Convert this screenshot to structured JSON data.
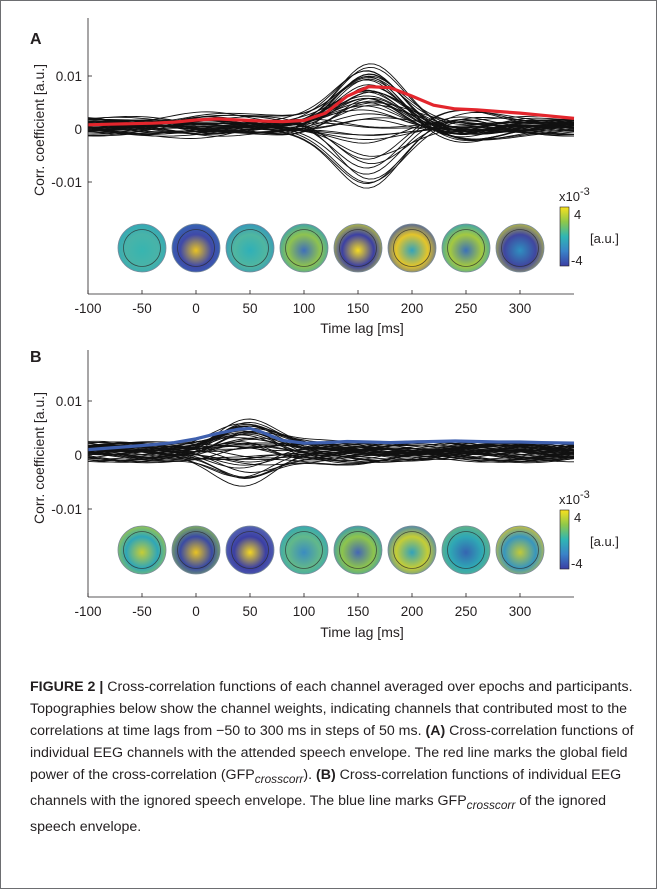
{
  "colors": {
    "red": "#e3262d",
    "blue": "#3f60ae",
    "black": "#111111",
    "axis": "#231f20"
  },
  "chart_data": [
    {
      "panel_label": "A",
      "type": "line",
      "xlabel": "Time lag [ms]",
      "ylabel": "Corr. coefficient [a.u.]",
      "xlim": [
        -100,
        350
      ],
      "ylim": [
        -0.017,
        0.0145
      ],
      "x_ticks": [
        -100,
        -50,
        0,
        50,
        100,
        150,
        200,
        250,
        300
      ],
      "x_tick_labels": [
        "-100",
        "-50",
        "0",
        "50",
        "100",
        "150",
        "200",
        "250",
        "300"
      ],
      "y_ticks": [
        0.01,
        0,
        -0.01
      ],
      "y_tick_labels": [
        "0.01",
        "0",
        "-0.01"
      ],
      "highlight_series": {
        "label": "GFP crosscorr (attended)",
        "color": "#e3262d",
        "x": [
          -100,
          -80,
          -60,
          -40,
          -20,
          0,
          20,
          40,
          60,
          80,
          100,
          120,
          140,
          160,
          180,
          200,
          220,
          240,
          260,
          280,
          300,
          320,
          350
        ],
        "y": [
          0.0008,
          0.0009,
          0.001,
          0.0011,
          0.0013,
          0.0017,
          0.0019,
          0.0017,
          0.0015,
          0.0014,
          0.0016,
          0.003,
          0.0062,
          0.008,
          0.0078,
          0.0062,
          0.0045,
          0.0038,
          0.0036,
          0.0033,
          0.003,
          0.0026,
          0.002
        ]
      },
      "topography_lags": [
        -50,
        0,
        50,
        100,
        150,
        200,
        250,
        300
      ],
      "colorbar": {
        "exponent_label": "x10",
        "exponent_power": "-3",
        "max_label": "4",
        "min_label": "-4",
        "unit": "[a.u.]"
      }
    },
    {
      "panel_label": "B",
      "type": "line",
      "xlabel": "Time lag [ms]",
      "ylabel": "Corr. coefficient [a.u.]",
      "xlim": [
        -100,
        350
      ],
      "ylim": [
        -0.017,
        0.0145
      ],
      "x_ticks": [
        -100,
        -50,
        0,
        50,
        100,
        150,
        200,
        250,
        300
      ],
      "x_tick_labels": [
        "-100",
        "-50",
        "0",
        "50",
        "100",
        "150",
        "200",
        "250",
        "300"
      ],
      "y_ticks": [
        0.01,
        0,
        -0.01
      ],
      "y_tick_labels": [
        "0.01",
        "0",
        "-0.01"
      ],
      "highlight_series": {
        "label": "GFP crosscorr (ignored)",
        "color": "#3f60ae",
        "x": [
          -100,
          -80,
          -60,
          -40,
          -20,
          0,
          20,
          40,
          50,
          60,
          80,
          100,
          120,
          140,
          160,
          180,
          200,
          220,
          240,
          260,
          280,
          300,
          320,
          350
        ],
        "y": [
          0.001,
          0.0013,
          0.0016,
          0.0019,
          0.0023,
          0.003,
          0.004,
          0.0048,
          0.0049,
          0.0043,
          0.0027,
          0.0022,
          0.0023,
          0.0025,
          0.0024,
          0.0023,
          0.0024,
          0.0025,
          0.0026,
          0.0025,
          0.0024,
          0.0024,
          0.0023,
          0.0022
        ]
      },
      "topography_lags": [
        -50,
        0,
        50,
        100,
        150,
        200,
        250,
        300
      ],
      "colorbar": {
        "exponent_label": "x10",
        "exponent_power": "-3",
        "max_label": "4",
        "min_label": "-4",
        "unit": "[a.u.]"
      }
    }
  ],
  "caption": {
    "figure_label": "FIGURE 2 |",
    "intro": " Cross-correlation functions of each channel averaged over epochs and participants. Topographies below show the channel weights, indicating channels that contributed most to the correlations at time lags from −50 to 300 ms in steps of 50 ms. ",
    "a_label": "(A)",
    "a_text": " Cross-correlation functions of individual EEG channels with the attended speech envelope. The red line marks the global field power of the cross-correlation (GFP",
    "sub1": "crosscorr",
    "a_end": "). ",
    "b_label": "(B)",
    "b_text": " Cross-correlation functions of individual EEG channels with the ignored speech envelope. The blue line marks GFP",
    "sub2": "crosscorr",
    "b_end": " of the ignored speech envelope."
  }
}
